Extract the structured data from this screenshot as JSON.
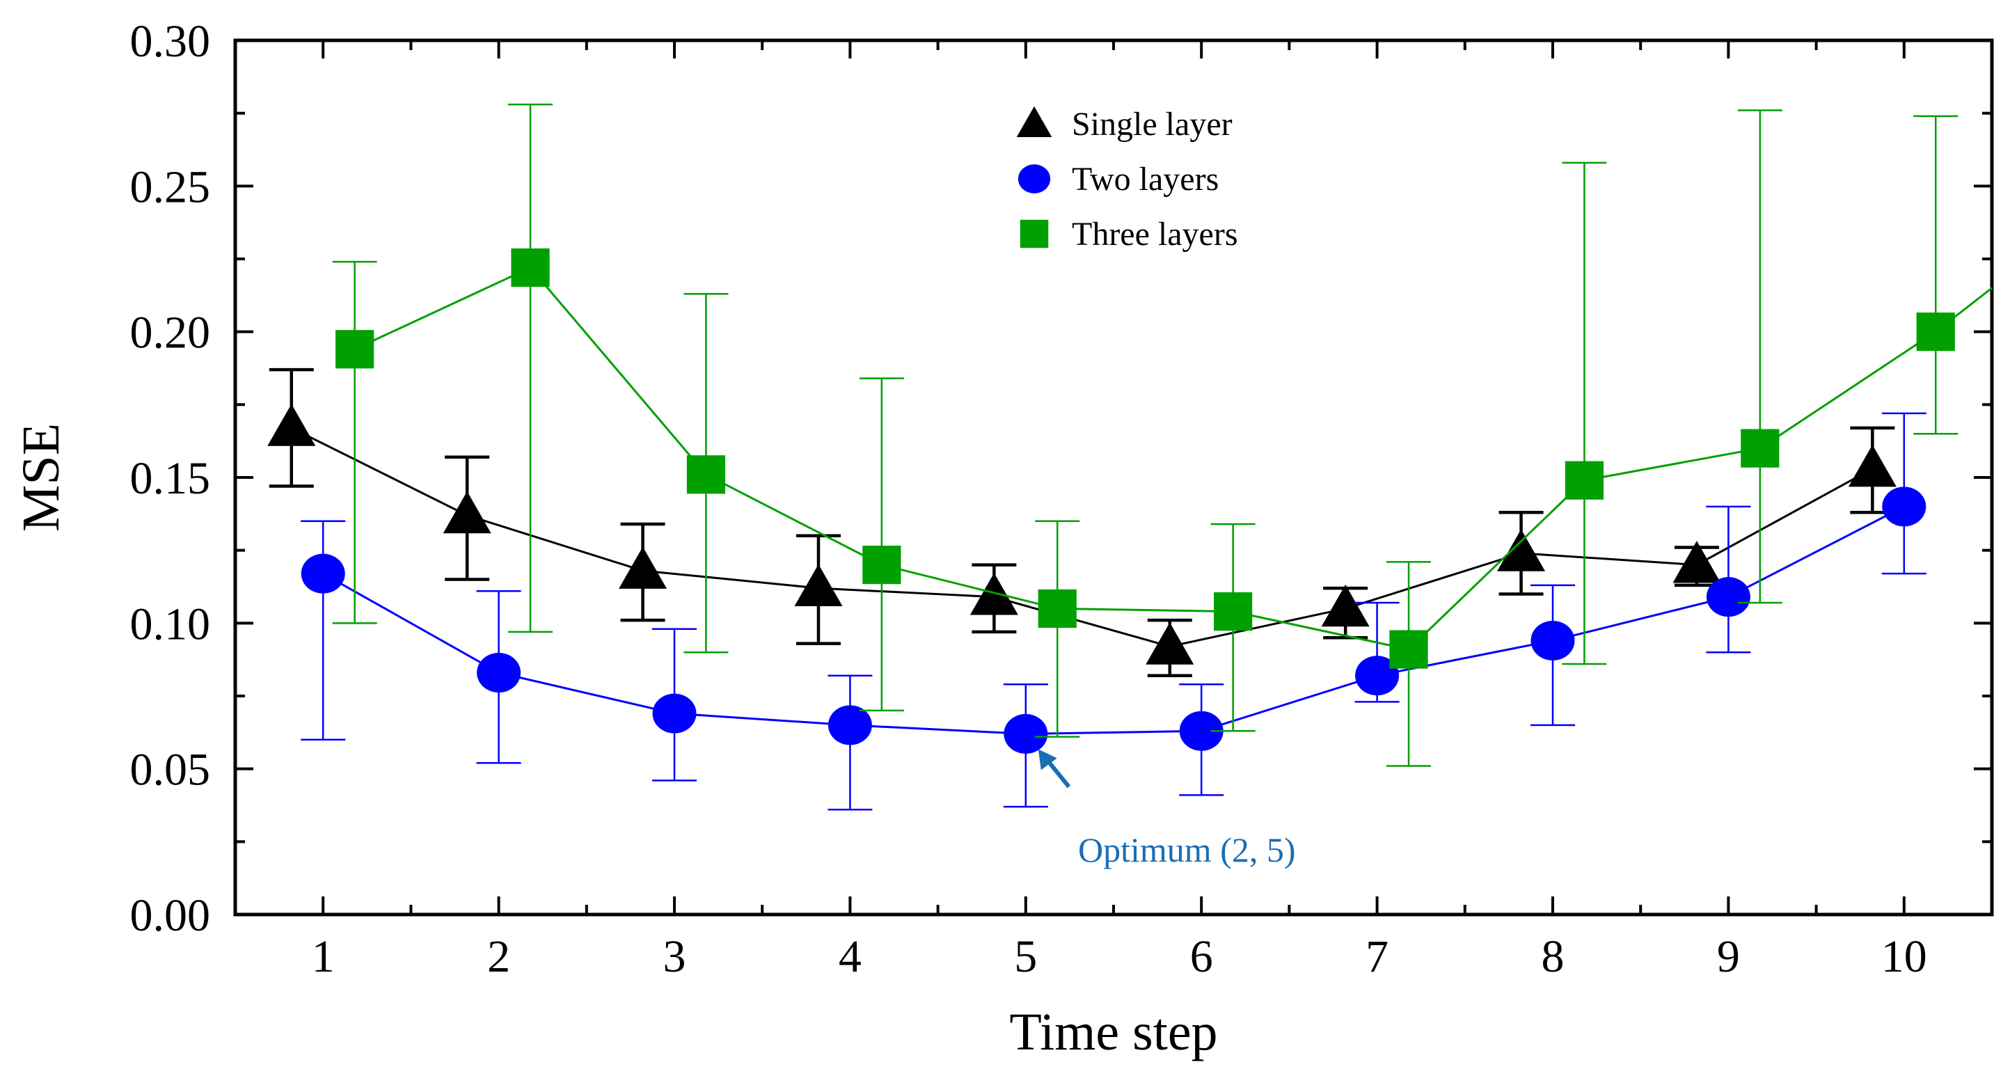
{
  "chart_data": {
    "type": "line",
    "title": "",
    "xlabel": "Time step",
    "ylabel": "MSE",
    "xlim": [
      0.5,
      10.5
    ],
    "ylim": [
      0,
      0.3
    ],
    "xticks": [
      1,
      2,
      3,
      4,
      5,
      6,
      7,
      8,
      9,
      10
    ],
    "yticks": [
      "0.00",
      "0.05",
      "0.10",
      "0.15",
      "0.20",
      "0.25",
      "0.30"
    ],
    "grid": false,
    "legend_position": "top-center",
    "series": [
      {
        "name": "Single layer",
        "marker": "triangle",
        "color": "#000000",
        "x": [
          0.82,
          1.82,
          2.82,
          3.82,
          4.82,
          5.82,
          6.82,
          7.82,
          8.82,
          9.82
        ],
        "values": [
          0.167,
          0.137,
          0.118,
          0.112,
          0.109,
          0.092,
          0.105,
          0.124,
          0.12,
          0.153
        ],
        "err_low": [
          0.147,
          0.115,
          0.101,
          0.093,
          0.097,
          0.082,
          0.095,
          0.11,
          0.113,
          0.138
        ],
        "err_high": [
          0.187,
          0.157,
          0.134,
          0.13,
          0.12,
          0.101,
          0.112,
          0.138,
          0.126,
          0.167
        ]
      },
      {
        "name": "Two layers",
        "marker": "circle",
        "color": "#0000ff",
        "x": [
          1,
          2,
          3,
          4,
          5,
          6,
          7,
          8,
          9,
          10
        ],
        "values": [
          0.117,
          0.083,
          0.069,
          0.065,
          0.062,
          0.063,
          0.082,
          0.094,
          0.109,
          0.14
        ],
        "err_low": [
          0.06,
          0.052,
          0.046,
          0.036,
          0.037,
          0.041,
          0.073,
          0.065,
          0.09,
          0.117
        ],
        "err_high": [
          0.135,
          0.111,
          0.098,
          0.082,
          0.079,
          0.079,
          0.107,
          0.113,
          0.14,
          0.172
        ]
      },
      {
        "name": "Three layers",
        "marker": "square",
        "color": "#00a000",
        "x": [
          1.18,
          2.18,
          3.18,
          4.18,
          5.18,
          6.18,
          7.18,
          8.18,
          9.18,
          10.18
        ],
        "values": [
          0.194,
          0.222,
          0.151,
          0.12,
          0.105,
          0.104,
          0.091,
          0.149,
          0.16,
          0.2
        ],
        "err_low": [
          0.1,
          0.097,
          0.09,
          0.07,
          0.061,
          0.063,
          0.051,
          0.086,
          0.107,
          0.165
        ],
        "err_high": [
          0.224,
          0.278,
          0.213,
          0.184,
          0.135,
          0.134,
          0.121,
          0.258,
          0.276,
          0.274
        ],
        "extends_to": [
          10.5,
          0.215
        ]
      }
    ],
    "annotations": [
      {
        "text": "Optimum (2, 5)",
        "color": "#1a6db5",
        "points_to": {
          "x": 5,
          "y": 0.062
        }
      }
    ]
  }
}
